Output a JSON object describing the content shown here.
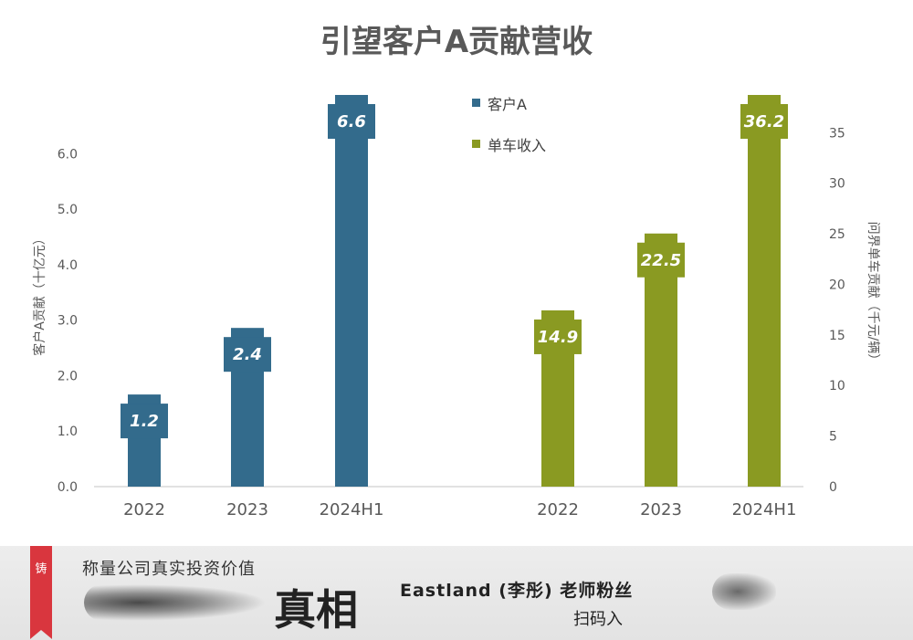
{
  "chart_data": {
    "type": "bar",
    "title": "引望客户A贡献营收",
    "left_axis": {
      "label": "客户A贡献（十亿元）",
      "ylim": [
        0,
        6.6
      ],
      "ticks": [
        "0.0",
        "1.0",
        "2.0",
        "3.0",
        "4.0",
        "5.0",
        "6.0"
      ]
    },
    "right_axis": {
      "label": "问界单车贡献（千元/辆）",
      "ylim": [
        0,
        36.2
      ],
      "ticks": [
        "0",
        "5",
        "10",
        "15",
        "20",
        "25",
        "30",
        "35"
      ]
    },
    "series": [
      {
        "name": "客户A",
        "axis": "left",
        "color": "#336b8c",
        "categories": [
          "2022",
          "2023",
          "2024H1"
        ],
        "values": [
          1.2,
          2.4,
          6.6
        ],
        "labels": [
          "1.2",
          "2.4",
          "6.6"
        ]
      },
      {
        "name": "单车收入",
        "axis": "right",
        "color": "#8a9a22",
        "categories": [
          "2022",
          "2023",
          "2024H1"
        ],
        "values": [
          14.9,
          22.5,
          36.2
        ],
        "labels": [
          "14.9",
          "22.5",
          "36.2"
        ]
      }
    ],
    "legend_position": "top-center",
    "grid": false
  },
  "banner": {
    "ribbon_text": "铸",
    "tagline": "称量公司真实投资价值",
    "logo_text": "真相",
    "fans_text": "Eastland (李彤) 老师粉丝",
    "scan_text": "扫码入"
  }
}
